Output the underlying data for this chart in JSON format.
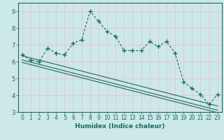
{
  "xlabel": "Humidex (Indice chaleur)",
  "background_color": "#cce8e8",
  "line_color": "#1a6b60",
  "grid_color": "#e8c8c8",
  "x_data": [
    0,
    1,
    2,
    3,
    4,
    5,
    6,
    7,
    8,
    9,
    10,
    11,
    12,
    13,
    14,
    15,
    16,
    17,
    18,
    19,
    20,
    21,
    22,
    23
  ],
  "y_main": [
    6.4,
    6.1,
    6.0,
    6.8,
    6.5,
    6.4,
    7.1,
    7.3,
    9.0,
    8.4,
    7.8,
    7.5,
    6.65,
    6.65,
    6.65,
    7.2,
    6.9,
    7.2,
    6.5,
    4.8,
    4.4,
    4.05,
    3.45,
    4.05
  ],
  "y_reg1": [
    6.35,
    6.22,
    6.09,
    5.96,
    5.83,
    5.7,
    5.57,
    5.44,
    5.31,
    5.18,
    5.05,
    4.92,
    4.79,
    4.66,
    4.53,
    4.4,
    4.27,
    4.14,
    4.01,
    3.88,
    3.75,
    3.62,
    3.49,
    3.36
  ],
  "y_reg2": [
    6.1,
    5.97,
    5.84,
    5.71,
    5.58,
    5.45,
    5.32,
    5.19,
    5.06,
    4.93,
    4.8,
    4.67,
    4.54,
    4.41,
    4.28,
    4.15,
    4.02,
    3.89,
    3.76,
    3.63,
    3.5,
    3.37,
    3.24,
    3.11
  ],
  "y_reg3": [
    5.95,
    5.82,
    5.69,
    5.56,
    5.43,
    5.3,
    5.17,
    5.04,
    4.91,
    4.78,
    4.65,
    4.52,
    4.39,
    4.26,
    4.13,
    4.0,
    3.87,
    3.74,
    3.61,
    3.48,
    3.35,
    3.22,
    3.09,
    2.96
  ],
  "ylim": [
    3.0,
    9.5
  ],
  "xlim": [
    -0.5,
    23.5
  ],
  "yticks": [
    3,
    4,
    5,
    6,
    7,
    8,
    9
  ],
  "xticks": [
    0,
    1,
    2,
    3,
    4,
    5,
    6,
    7,
    8,
    9,
    10,
    11,
    12,
    13,
    14,
    15,
    16,
    17,
    18,
    19,
    20,
    21,
    22,
    23
  ]
}
